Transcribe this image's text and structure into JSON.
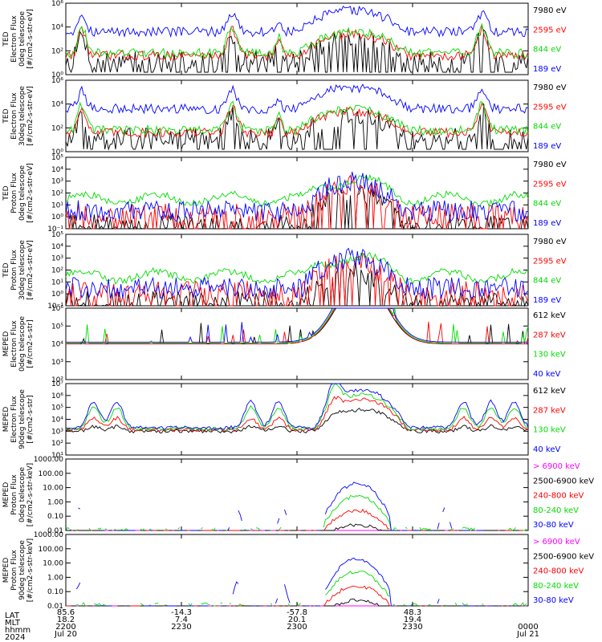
{
  "colors": {
    "blue": "#0000ff",
    "red": "#ff0000",
    "green": "#00dd00",
    "black": "#000000",
    "magenta": "#ff00ff"
  },
  "chart_data": [
    {
      "type": "line",
      "ylabel": [
        "TED",
        "Electron Flux",
        "0deg telescope",
        "[#/cm2-s-str-eV]"
      ],
      "ylog": true,
      "ylim": [
        1,
        1000000
      ],
      "yticks": [
        1,
        100,
        10000,
        1000000
      ],
      "series": [
        {
          "name": "7980 eV",
          "color": "#000000"
        },
        {
          "name": "2595 eV",
          "color": "#ff0000"
        },
        {
          "name": "844 eV",
          "color": "#00dd00"
        },
        {
          "name": "189 eV",
          "color": "#0000ff"
        }
      ]
    },
    {
      "type": "line",
      "ylabel": [
        "TED",
        "Electron Flux",
        "30deg telescope",
        "[#/cm2-s-str-eV]"
      ],
      "ylog": true,
      "ylim": [
        1,
        1000000
      ],
      "yticks": [
        1,
        100,
        10000,
        1000000
      ],
      "series": [
        {
          "name": "7980 eV",
          "color": "#000000"
        },
        {
          "name": "2595 eV",
          "color": "#ff0000"
        },
        {
          "name": "844 eV",
          "color": "#00dd00"
        },
        {
          "name": "189 eV",
          "color": "#0000ff"
        }
      ]
    },
    {
      "type": "line",
      "ylabel": [
        "TED",
        "Proton Flux",
        "0deg telescope",
        "[#/cm2-s-str-eV]"
      ],
      "ylog": true,
      "ylim": [
        0.1,
        100000
      ],
      "yticks": [
        0.1,
        1,
        10,
        100,
        1000,
        10000,
        100000
      ],
      "series": [
        {
          "name": "7980 eV",
          "color": "#000000"
        },
        {
          "name": "2595 eV",
          "color": "#ff0000"
        },
        {
          "name": "844 eV",
          "color": "#00dd00"
        },
        {
          "name": "189 eV",
          "color": "#0000ff"
        }
      ]
    },
    {
      "type": "line",
      "ylabel": [
        "TED",
        "Proton Flux",
        "30deg telescope",
        "[#/cm2-s-str-eV]"
      ],
      "ylog": true,
      "ylim": [
        0.1,
        100000
      ],
      "yticks": [
        0.1,
        1,
        10,
        100,
        1000,
        10000,
        100000
      ],
      "series": [
        {
          "name": "7980 eV",
          "color": "#000000"
        },
        {
          "name": "2595 eV",
          "color": "#ff0000"
        },
        {
          "name": "844 eV",
          "color": "#00dd00"
        },
        {
          "name": "189 eV",
          "color": "#0000ff"
        }
      ]
    },
    {
      "type": "line",
      "ylabel": [
        "MEPED",
        "Electron Flux",
        "0deg telescope",
        "[#/cm2-s-str]"
      ],
      "ylog": true,
      "ylim": [
        100,
        1000000
      ],
      "yticks": [
        100,
        1000,
        10000,
        100000,
        1000000
      ],
      "series": [
        {
          "name": "612 keV",
          "color": "#000000"
        },
        {
          "name": "287 keV",
          "color": "#ff0000"
        },
        {
          "name": "130 keV",
          "color": "#00dd00"
        },
        {
          "name": "40 keV",
          "color": "#0000ff"
        }
      ]
    },
    {
      "type": "line",
      "ylabel": [
        "MEPED",
        "Electron Flux",
        "90deg telescope",
        "[#/cm2-s-str]"
      ],
      "ylog": true,
      "ylim": [
        10,
        10000000
      ],
      "yticks": [
        10,
        100,
        1000,
        10000,
        100000,
        1000000,
        10000000
      ],
      "series": [
        {
          "name": "612 keV",
          "color": "#000000"
        },
        {
          "name": "287 keV",
          "color": "#ff0000"
        },
        {
          "name": "130 keV",
          "color": "#00dd00"
        },
        {
          "name": "40 keV",
          "color": "#0000ff"
        }
      ]
    },
    {
      "type": "line",
      "ylabel": [
        "MEPED",
        "Proton Flux",
        "0deg telescope",
        "[#/cm2-s-str-keV]"
      ],
      "ylog": true,
      "ylim": [
        0.01,
        1000
      ],
      "yticks": [
        0.01,
        0.1,
        1,
        10,
        100,
        1000
      ],
      "yticklabels": [
        "0.01",
        "0.10",
        "1.00",
        "10.00",
        "100.00",
        "1000.00"
      ],
      "series": [
        {
          "name": "> 6900 keV",
          "color": "#ff00ff"
        },
        {
          "name": "2500-6900 keV",
          "color": "#000000"
        },
        {
          "name": "240-800 keV",
          "color": "#ff0000"
        },
        {
          "name": "80-240 keV",
          "color": "#00dd00"
        },
        {
          "name": "30-80 keV",
          "color": "#0000ff"
        }
      ]
    },
    {
      "type": "line",
      "ylabel": [
        "MEPED",
        "Proton Flux",
        "90deg telescope",
        "[#/cm2-s-str-keV]"
      ],
      "ylog": true,
      "ylim": [
        0.01,
        1000
      ],
      "yticks": [
        0.01,
        0.1,
        1,
        10,
        100,
        1000
      ],
      "yticklabels": [
        "0.01",
        "0.10",
        "1.00",
        "10.00",
        "100.00",
        "1000.00"
      ],
      "series": [
        {
          "name": "> 6900 keV",
          "color": "#ff00ff"
        },
        {
          "name": "2500-6900 keV",
          "color": "#000000"
        },
        {
          "name": "240-800 keV",
          "color": "#ff0000"
        },
        {
          "name": "80-240 keV",
          "color": "#00dd00"
        },
        {
          "name": "30-80 keV",
          "color": "#0000ff"
        }
      ]
    }
  ],
  "xaxis": {
    "row_labels": [
      "LAT",
      "MLT",
      "hhmm",
      "2024"
    ],
    "ticks": [
      {
        "lat": "85.6",
        "mlt": "18.2",
        "hhmm": "2200",
        "date": "Jul 20"
      },
      {
        "lat": "-14.3",
        "mlt": "7.4",
        "hhmm": "2230",
        "date": ""
      },
      {
        "lat": "-57.8",
        "mlt": "20.1",
        "hhmm": "2300",
        "date": ""
      },
      {
        "lat": "48.3",
        "mlt": "19.4",
        "hhmm": "2330",
        "date": ""
      },
      {
        "lat": "",
        "mlt": "",
        "hhmm": "0000",
        "date": "Jul 21"
      }
    ]
  }
}
